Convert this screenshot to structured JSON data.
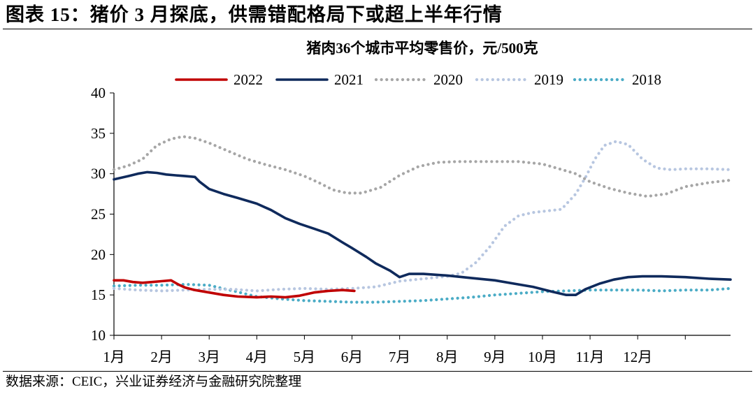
{
  "figure": {
    "title": "图表 15：猪价 3 月探底，供需错配格局下或超上半年行情",
    "source": "数据来源：CEIC，兴业证券经济与金融研究院整理"
  },
  "chart_data": {
    "type": "line",
    "title": "猪肉36个城市平均零售价，元/500克",
    "xlabel": "",
    "ylabel": "",
    "ylim": [
      10,
      40
    ],
    "yticks": [
      "10",
      "15",
      "20",
      "25",
      "30",
      "35",
      "40"
    ],
    "xlim": [
      1,
      13.95
    ],
    "categories": [
      "1月",
      "2月",
      "3月",
      "4月",
      "5月",
      "6月",
      "7月",
      "8月",
      "9月",
      "10月",
      "11月",
      "12月"
    ],
    "legend_position": "top",
    "grid": false,
    "series": [
      {
        "name": "2022",
        "color": "#c00000",
        "style": "solid",
        "x": [
          1,
          1.2,
          1.4,
          1.6,
          1.8,
          2.0,
          2.2,
          2.35,
          2.5,
          2.7,
          3.0,
          3.3,
          3.6,
          4.0,
          4.3,
          4.6,
          4.9,
          5.2,
          5.5,
          5.8,
          6.05
        ],
        "y": [
          16.8,
          16.8,
          16.6,
          16.5,
          16.6,
          16.7,
          16.8,
          16.3,
          15.9,
          15.6,
          15.3,
          15.0,
          14.8,
          14.7,
          14.8,
          14.7,
          14.9,
          15.3,
          15.5,
          15.6,
          15.5
        ]
      },
      {
        "name": "2021",
        "color": "#0f2a5c",
        "style": "solid",
        "x": [
          1,
          1.3,
          1.5,
          1.7,
          1.9,
          2.1,
          2.3,
          2.5,
          2.7,
          2.8,
          3.0,
          3.3,
          3.6,
          4.0,
          4.3,
          4.6,
          4.9,
          5.2,
          5.5,
          5.8,
          6.0,
          6.3,
          6.5,
          6.8,
          7.0,
          7.2,
          7.5,
          8.0,
          8.5,
          9.0,
          9.4,
          9.8,
          10.2,
          10.5,
          10.7,
          10.9,
          11.2,
          11.5,
          11.8,
          12.1,
          12.5,
          13.0,
          13.5,
          13.95
        ],
        "y": [
          29.3,
          29.7,
          30.0,
          30.2,
          30.1,
          29.9,
          29.8,
          29.7,
          29.6,
          29.0,
          28.1,
          27.5,
          27.0,
          26.3,
          25.5,
          24.5,
          23.8,
          23.2,
          22.6,
          21.5,
          20.8,
          19.7,
          18.9,
          18.0,
          17.2,
          17.6,
          17.6,
          17.4,
          17.1,
          16.8,
          16.4,
          16.0,
          15.4,
          15.0,
          15.0,
          15.7,
          16.4,
          16.9,
          17.2,
          17.3,
          17.3,
          17.2,
          17.0,
          16.9
        ]
      },
      {
        "name": "2020",
        "color": "#a6a6a6",
        "style": "dotted",
        "x": [
          1,
          1.3,
          1.6,
          1.9,
          2.2,
          2.45,
          2.7,
          3.0,
          3.4,
          3.8,
          4.2,
          4.6,
          5.0,
          5.3,
          5.6,
          5.9,
          6.2,
          6.6,
          7.0,
          7.4,
          7.8,
          8.2,
          8.6,
          9.0,
          9.5,
          10.0,
          10.3,
          10.7,
          11.0,
          11.4,
          11.8,
          12.2,
          12.6,
          13.0,
          13.5,
          13.95
        ],
        "y": [
          30.5,
          31.0,
          31.8,
          33.5,
          34.3,
          34.6,
          34.4,
          33.8,
          32.8,
          31.8,
          31.1,
          30.5,
          29.7,
          28.9,
          28.0,
          27.6,
          27.6,
          28.3,
          29.8,
          30.9,
          31.4,
          31.5,
          31.5,
          31.5,
          31.5,
          31.2,
          30.7,
          30.0,
          29.0,
          28.2,
          27.6,
          27.2,
          27.5,
          28.4,
          28.9,
          29.2
        ]
      },
      {
        "name": "2019",
        "color": "#b7c6e0",
        "style": "dotted",
        "x": [
          1,
          1.5,
          2.0,
          2.5,
          3.0,
          3.5,
          4.0,
          4.5,
          5.0,
          5.5,
          6.0,
          6.5,
          7.0,
          7.5,
          8.0,
          8.3,
          8.6,
          8.9,
          9.2,
          9.5,
          9.8,
          10.1,
          10.4,
          10.7,
          10.9,
          11.1,
          11.3,
          11.55,
          11.8,
          12.1,
          12.4,
          12.7,
          13.0,
          13.5,
          13.95
        ],
        "y": [
          15.8,
          15.6,
          15.5,
          15.6,
          15.7,
          15.7,
          15.5,
          15.7,
          15.8,
          15.7,
          15.8,
          16.0,
          16.7,
          17.0,
          17.3,
          17.7,
          19.0,
          21.0,
          23.5,
          24.8,
          25.2,
          25.4,
          25.6,
          27.5,
          29.5,
          31.8,
          33.5,
          34.0,
          33.6,
          31.8,
          30.7,
          30.5,
          30.6,
          30.6,
          30.5
        ]
      },
      {
        "name": "2018",
        "color": "#4bacc6",
        "style": "dotted",
        "x": [
          1,
          1.5,
          2.0,
          2.5,
          3.0,
          3.5,
          4.0,
          4.5,
          5.0,
          5.5,
          6.0,
          6.5,
          7.0,
          7.5,
          8.0,
          8.5,
          9.0,
          9.5,
          10.0,
          10.5,
          11.0,
          11.5,
          12.0,
          12.5,
          13.0,
          13.5,
          13.95
        ],
        "y": [
          16.1,
          16.2,
          16.2,
          16.3,
          16.2,
          15.5,
          14.8,
          14.5,
          14.3,
          14.2,
          14.1,
          14.1,
          14.2,
          14.3,
          14.5,
          14.7,
          15.0,
          15.2,
          15.4,
          15.5,
          15.6,
          15.6,
          15.6,
          15.5,
          15.6,
          15.6,
          15.8
        ]
      }
    ]
  }
}
